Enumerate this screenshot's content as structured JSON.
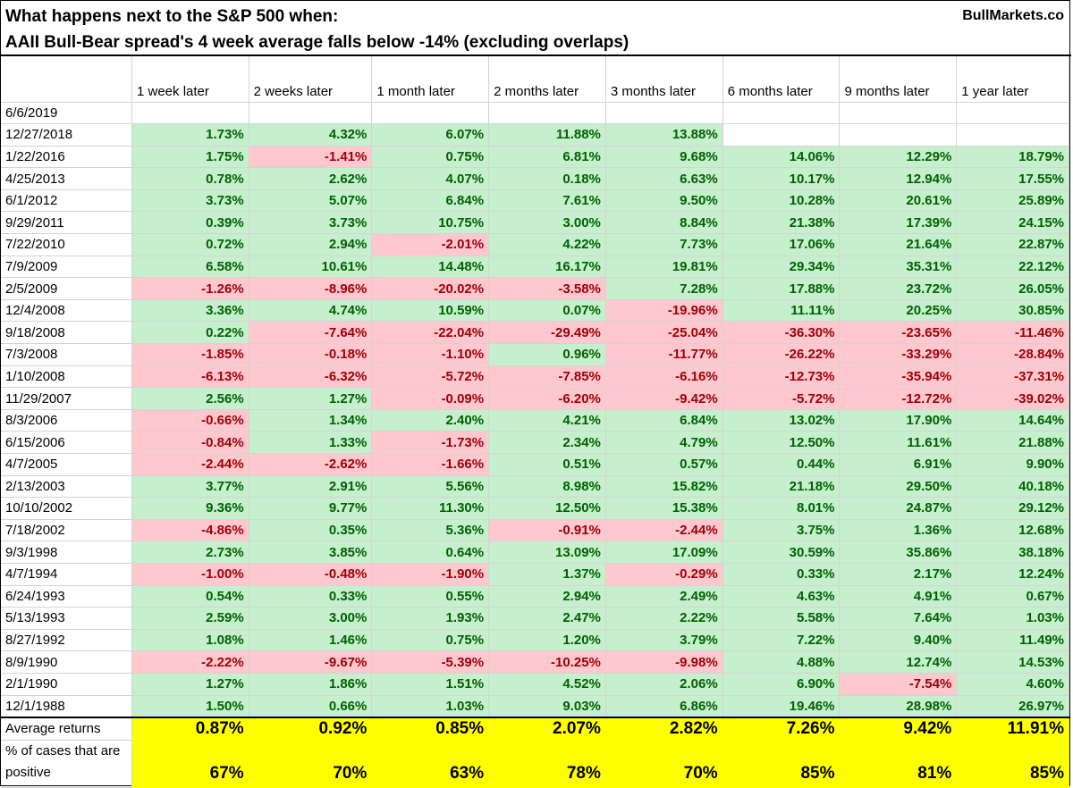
{
  "title_line1": "What happens next to the S&P 500 when:",
  "title_line2": "AAII Bull-Bear spread's 4 week average falls below -14% (excluding overlaps)",
  "brand": "BullMarkets.co",
  "colors": {
    "positive_bg": "#c6efce",
    "positive_text": "#006100",
    "negative_bg": "#ffc7ce",
    "negative_text": "#9c0006",
    "summary_bg": "#ffff00"
  },
  "chart_data": {
    "type": "table",
    "title": "What happens next to the S&P 500 when: AAII Bull-Bear spread's 4 week average falls below -14% (excluding overlaps)",
    "columns": [
      "1 week later",
      "2 weeks later",
      "1 month later",
      "2 months later",
      "3 months later",
      "6 months later",
      "9 months later",
      "1 year later"
    ],
    "rows": [
      {
        "date": "6/6/2019",
        "values": [
          "",
          "",
          "",
          "",
          "",
          "",
          "",
          ""
        ]
      },
      {
        "date": "12/27/2018",
        "values": [
          "1.73%",
          "4.32%",
          "6.07%",
          "11.88%",
          "13.88%",
          "",
          "",
          ""
        ]
      },
      {
        "date": "1/22/2016",
        "values": [
          "1.75%",
          "-1.41%",
          "0.75%",
          "6.81%",
          "9.68%",
          "14.06%",
          "12.29%",
          "18.79%"
        ]
      },
      {
        "date": "4/25/2013",
        "values": [
          "0.78%",
          "2.62%",
          "4.07%",
          "0.18%",
          "6.63%",
          "10.17%",
          "12.94%",
          "17.55%"
        ]
      },
      {
        "date": "6/1/2012",
        "values": [
          "3.73%",
          "5.07%",
          "6.84%",
          "7.61%",
          "9.50%",
          "10.28%",
          "20.61%",
          "25.89%"
        ]
      },
      {
        "date": "9/29/2011",
        "values": [
          "0.39%",
          "3.73%",
          "10.75%",
          "3.00%",
          "8.84%",
          "21.38%",
          "17.39%",
          "24.15%"
        ]
      },
      {
        "date": "7/22/2010",
        "values": [
          "0.72%",
          "2.94%",
          "-2.01%",
          "4.22%",
          "7.73%",
          "17.06%",
          "21.64%",
          "22.87%"
        ]
      },
      {
        "date": "7/9/2009",
        "values": [
          "6.58%",
          "10.61%",
          "14.48%",
          "16.17%",
          "19.81%",
          "29.34%",
          "35.31%",
          "22.12%"
        ]
      },
      {
        "date": "2/5/2009",
        "values": [
          "-1.26%",
          "-8.96%",
          "-20.02%",
          "-3.58%",
          "7.28%",
          "17.88%",
          "23.72%",
          "26.05%"
        ]
      },
      {
        "date": "12/4/2008",
        "values": [
          "3.36%",
          "4.74%",
          "10.59%",
          "0.07%",
          "-19.96%",
          "11.11%",
          "20.25%",
          "30.85%"
        ]
      },
      {
        "date": "9/18/2008",
        "values": [
          "0.22%",
          "-7.64%",
          "-22.04%",
          "-29.49%",
          "-25.04%",
          "-36.30%",
          "-23.65%",
          "-11.46%"
        ]
      },
      {
        "date": "7/3/2008",
        "values": [
          "-1.85%",
          "-0.18%",
          "-1.10%",
          "0.96%",
          "-11.77%",
          "-26.22%",
          "-33.29%",
          "-28.84%"
        ]
      },
      {
        "date": "1/10/2008",
        "values": [
          "-6.13%",
          "-6.32%",
          "-5.72%",
          "-7.85%",
          "-6.16%",
          "-12.73%",
          "-35.94%",
          "-37.31%"
        ]
      },
      {
        "date": "11/29/2007",
        "values": [
          "2.56%",
          "1.27%",
          "-0.09%",
          "-6.20%",
          "-9.42%",
          "-5.72%",
          "-12.72%",
          "-39.02%"
        ]
      },
      {
        "date": "8/3/2006",
        "values": [
          "-0.66%",
          "1.34%",
          "2.40%",
          "4.21%",
          "6.84%",
          "13.02%",
          "17.90%",
          "14.64%"
        ]
      },
      {
        "date": "6/15/2006",
        "values": [
          "-0.84%",
          "1.33%",
          "-1.73%",
          "2.34%",
          "4.79%",
          "12.50%",
          "11.61%",
          "21.88%"
        ]
      },
      {
        "date": "4/7/2005",
        "values": [
          "-2.44%",
          "-2.62%",
          "-1.66%",
          "0.51%",
          "0.57%",
          "0.44%",
          "6.91%",
          "9.90%"
        ]
      },
      {
        "date": "2/13/2003",
        "values": [
          "3.77%",
          "2.91%",
          "5.56%",
          "8.98%",
          "15.82%",
          "21.18%",
          "29.50%",
          "40.18%"
        ]
      },
      {
        "date": "10/10/2002",
        "values": [
          "9.36%",
          "9.77%",
          "11.30%",
          "12.50%",
          "15.38%",
          "8.01%",
          "24.87%",
          "29.12%"
        ]
      },
      {
        "date": "7/18/2002",
        "values": [
          "-4.86%",
          "0.35%",
          "5.36%",
          "-0.91%",
          "-2.44%",
          "3.75%",
          "1.36%",
          "12.68%"
        ]
      },
      {
        "date": "9/3/1998",
        "values": [
          "2.73%",
          "3.85%",
          "0.64%",
          "13.09%",
          "17.09%",
          "30.59%",
          "35.86%",
          "38.18%"
        ]
      },
      {
        "date": "4/7/1994",
        "values": [
          "-1.00%",
          "-0.48%",
          "-1.90%",
          "1.37%",
          "-0.29%",
          "0.33%",
          "2.17%",
          "12.24%"
        ]
      },
      {
        "date": "6/24/1993",
        "values": [
          "0.54%",
          "0.33%",
          "0.55%",
          "2.94%",
          "2.49%",
          "4.63%",
          "4.91%",
          "0.67%"
        ]
      },
      {
        "date": "5/13/1993",
        "values": [
          "2.59%",
          "3.00%",
          "1.93%",
          "2.47%",
          "2.22%",
          "5.58%",
          "7.64%",
          "1.03%"
        ]
      },
      {
        "date": "8/27/1992",
        "values": [
          "1.08%",
          "1.46%",
          "0.75%",
          "1.20%",
          "3.79%",
          "7.22%",
          "9.40%",
          "11.49%"
        ]
      },
      {
        "date": "8/9/1990",
        "values": [
          "-2.22%",
          "-9.67%",
          "-5.39%",
          "-10.25%",
          "-9.98%",
          "4.88%",
          "12.74%",
          "14.53%"
        ]
      },
      {
        "date": "2/1/1990",
        "values": [
          "1.27%",
          "1.86%",
          "1.51%",
          "4.52%",
          "2.06%",
          "6.90%",
          "-7.54%",
          "4.60%"
        ]
      },
      {
        "date": "12/1/1988",
        "values": [
          "1.50%",
          "0.66%",
          "1.03%",
          "9.03%",
          "6.86%",
          "19.46%",
          "28.98%",
          "26.97%"
        ]
      }
    ],
    "summary": [
      {
        "label": "Average returns",
        "values": [
          "0.87%",
          "0.92%",
          "0.85%",
          "2.07%",
          "2.82%",
          "7.26%",
          "9.42%",
          "11.91%"
        ]
      },
      {
        "label": "% of cases that are positive",
        "values": [
          "67%",
          "70%",
          "63%",
          "78%",
          "70%",
          "85%",
          "81%",
          "85%"
        ]
      }
    ]
  }
}
